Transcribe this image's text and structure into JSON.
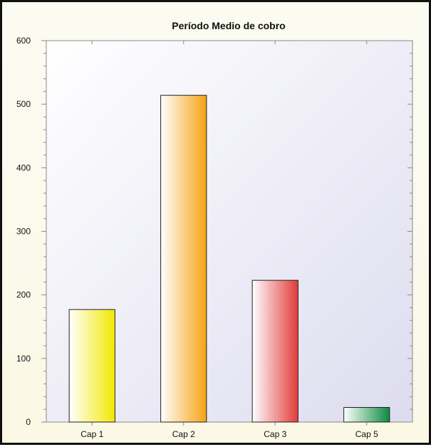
{
  "chart_data": {
    "type": "bar",
    "title": "Período Medio de cobro",
    "categories": [
      "Cap 1",
      "Cap 2",
      "Cap 3",
      "Cap 5"
    ],
    "values": [
      177,
      514,
      223,
      23
    ],
    "xlabel": "",
    "ylabel": "",
    "ylim": [
      0,
      600
    ],
    "yticks": [
      0,
      100,
      200,
      300,
      400,
      500,
      600
    ],
    "grid": false,
    "legend": "none",
    "bar_colors": [
      "#f3e800",
      "#f6a313",
      "#e23a3a",
      "#0d8a3e"
    ]
  }
}
